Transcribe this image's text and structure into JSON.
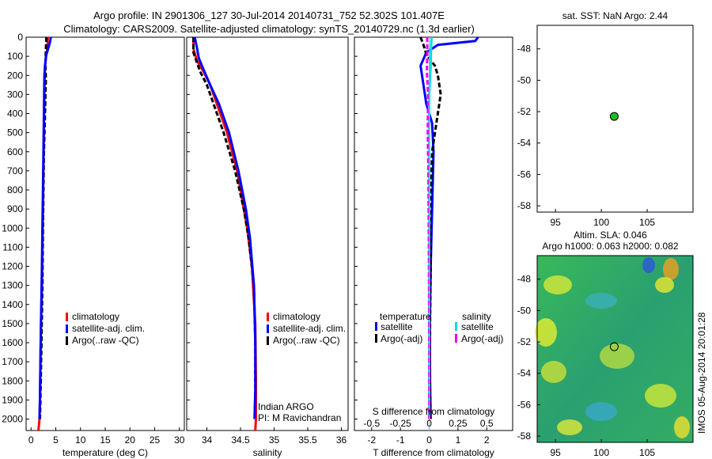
{
  "header": {
    "line1": "Argo profile: IN 2901306_127 30-Jul-2014 20140731_752 52.302S 101.407E",
    "line2": "Climatology: CARS2009. Satellite-adjusted climatology: synTS_20140729.nc (1.3d earlier)"
  },
  "colors": {
    "climatology": "#ff0000",
    "satellite": "#0000ff",
    "argo": "#000000",
    "salinity_satellite": "#00dddd",
    "salinity_argo": "#ee00ee",
    "float_marker": "#22bb22"
  },
  "chart_data": [
    {
      "id": "temperature",
      "type": "line",
      "xlabel": "temperature (deg C)",
      "xlim": [
        -1,
        31
      ],
      "ylim": [
        2060,
        0
      ],
      "xticks": [
        "0",
        "5",
        "10",
        "15",
        "20",
        "25",
        "30"
      ],
      "xtick_values": [
        0,
        5,
        10,
        15,
        20,
        25,
        30
      ],
      "yticks": [
        "0",
        "100",
        "200",
        "300",
        "400",
        "500",
        "600",
        "700",
        "800",
        "900",
        "1000",
        "1100",
        "1200",
        "1300",
        "1400",
        "1500",
        "1600",
        "1700",
        "1800",
        "1900",
        "2000"
      ],
      "ytick_values": [
        0,
        100,
        200,
        300,
        400,
        500,
        600,
        700,
        800,
        900,
        1000,
        1100,
        1200,
        1300,
        1400,
        1500,
        1600,
        1700,
        1800,
        1900,
        2000
      ],
      "legend": [
        "climatology",
        "satellite-adj. clim.",
        "Argo(..raw -QC)"
      ],
      "series": [
        {
          "name": "climatology",
          "color": "#ff0000",
          "x": [
            3.4,
            3.3,
            2.8,
            2.7,
            2.6,
            2.5,
            2.4,
            2.3,
            2.2,
            2.0,
            1.9,
            1.8,
            1.7,
            1.5
          ],
          "y": [
            0,
            50,
            150,
            300,
            500,
            700,
            900,
            1100,
            1300,
            1500,
            1700,
            1900,
            2000,
            2060
          ]
        },
        {
          "name": "Argo(..raw -QC)",
          "color": "#000000",
          "x": [
            3.1,
            3.0,
            2.9,
            3.0,
            2.9,
            2.8,
            2.6,
            2.5,
            2.4,
            2.3,
            2.1,
            1.9,
            1.8
          ],
          "y": [
            0,
            60,
            150,
            220,
            300,
            420,
            600,
            800,
            1000,
            1300,
            1600,
            1900,
            2000
          ]
        },
        {
          "name": "satellite-adj. clim.",
          "color": "#0000ff",
          "x": [
            4.0,
            3.8,
            3.0,
            2.7,
            2.6,
            2.5,
            2.4,
            2.3,
            2.2,
            2.0,
            1.9,
            1.8,
            1.7
          ],
          "y": [
            0,
            30,
            100,
            200,
            400,
            600,
            800,
            1000,
            1200,
            1500,
            1700,
            1900,
            2000
          ]
        }
      ]
    },
    {
      "id": "salinity",
      "type": "line",
      "xlabel": "salinity",
      "xlim": [
        33.7,
        36.1
      ],
      "ylim": [
        2060,
        0
      ],
      "xticks": [
        "34",
        "34.5",
        "35",
        "35.5",
        "36"
      ],
      "xtick_values": [
        34,
        34.5,
        35,
        35.5,
        36
      ],
      "legend": [
        "climatology",
        "satellite-adj. clim.",
        "Argo(..raw -QC)"
      ],
      "annotation": [
        "Indian ARGO",
        "PI: M Ravichandran"
      ],
      "series": [
        {
          "name": "climatology",
          "color": "#ff0000",
          "x": [
            33.8,
            33.8,
            33.85,
            33.95,
            34.05,
            34.15,
            34.3,
            34.45,
            34.55,
            34.6,
            34.67,
            34.72,
            34.73,
            34.73,
            34.72
          ],
          "y": [
            0,
            60,
            120,
            180,
            250,
            350,
            500,
            700,
            900,
            1000,
            1200,
            1500,
            1800,
            2000,
            2060
          ]
        },
        {
          "name": "Argo(..raw -QC)",
          "color": "#000000",
          "x": [
            33.8,
            33.8,
            33.85,
            33.9,
            34.0,
            34.1,
            34.25,
            34.42,
            34.55,
            34.62,
            34.7,
            34.72,
            34.72,
            34.71
          ],
          "y": [
            0,
            80,
            130,
            180,
            250,
            350,
            500,
            700,
            900,
            1050,
            1300,
            1600,
            1850,
            2000
          ]
        },
        {
          "name": "satellite-adj. clim.",
          "color": "#0000ff",
          "x": [
            33.82,
            33.85,
            33.88,
            33.95,
            34.05,
            34.18,
            34.33,
            34.47,
            34.58,
            34.64,
            34.7,
            34.72,
            34.72,
            34.71
          ],
          "y": [
            0,
            50,
            110,
            170,
            250,
            350,
            500,
            700,
            900,
            1050,
            1300,
            1600,
            1850,
            2000
          ]
        }
      ]
    },
    {
      "id": "difference",
      "type": "line",
      "xlabel": "T difference from climatology",
      "x2label": "S difference from climatology",
      "xlim": [
        -2.6,
        2.9
      ],
      "ylim": [
        2060,
        0
      ],
      "xticks": [
        "-2",
        "-1",
        "0",
        "1",
        "2"
      ],
      "xtick_values": [
        -2,
        -1,
        0,
        1,
        2
      ],
      "x2ticks": [
        "-0.5",
        "-0.25",
        "0",
        "0.25",
        "0.5"
      ],
      "x2tick_values": [
        -0.5,
        -0.25,
        0,
        0.25,
        0.5
      ],
      "legend_temperature": {
        "heading": "temperature",
        "items": [
          "satellite",
          "Argo(-adj)"
        ]
      },
      "legend_salinity": {
        "heading": "salinity",
        "items": [
          "satellite",
          "Argo(-adj)"
        ]
      },
      "series": [
        {
          "name": "temperature satellite",
          "color": "#0000ff",
          "x": [
            1.7,
            1.6,
            0.3,
            -0.1,
            -0.3,
            -0.2,
            -0.1,
            0.1,
            0.15,
            0.1,
            0.05,
            0.02,
            0.03,
            0.05
          ],
          "y": [
            0,
            20,
            40,
            80,
            150,
            250,
            350,
            450,
            600,
            900,
            1200,
            1500,
            1800,
            2000
          ]
        },
        {
          "name": "temperature Argo(-adj)",
          "color": "#000000",
          "x": [
            -0.3,
            -0.2,
            -0.1,
            0.2,
            0.3,
            0.4,
            0.25,
            0.1,
            0.05,
            0.05,
            0.03,
            0.02,
            0.04
          ],
          "y": [
            0,
            40,
            90,
            150,
            200,
            300,
            450,
            600,
            900,
            1200,
            1500,
            1800,
            2000
          ]
        },
        {
          "name": "salinity satellite",
          "color": "#00dddd",
          "x": [
            0.08,
            0.06,
            0.05,
            0.0,
            -0.01,
            0.0,
            0.0,
            0.0,
            0.0,
            0.0
          ],
          "y": [
            0,
            80,
            150,
            300,
            500,
            800,
            1100,
            1400,
            1700,
            2000
          ]
        },
        {
          "name": "salinity Argo(-adj)",
          "color": "#ee00ee",
          "x": [
            -0.07,
            -0.07,
            -0.08,
            -0.04,
            -0.05,
            -0.03,
            -0.02,
            -0.01,
            0.0,
            0.0
          ],
          "y": [
            0,
            100,
            180,
            300,
            500,
            700,
            900,
            1200,
            1600,
            2000
          ]
        }
      ]
    },
    {
      "id": "sst_map",
      "type": "scatter",
      "title": "sat. SST: NaN Argo: 2.44",
      "xlim": [
        93,
        110
      ],
      "ylim": [
        -58.4,
        -46.5
      ],
      "xticks": [
        "95",
        "100",
        "105"
      ],
      "xtick_values": [
        95,
        100,
        105
      ],
      "yticks": [
        "-48",
        "-50",
        "-52",
        "-54",
        "-56",
        "-58"
      ],
      "ytick_values": [
        -48,
        -50,
        -52,
        -54,
        -56,
        -58
      ],
      "points": [
        {
          "x": 101.407,
          "y": -52.302
        }
      ]
    },
    {
      "id": "sla_map",
      "type": "heatmap",
      "title_line1": "Altim. SLA: 0.046",
      "title_line2": "Argo h1000: 0.063 h2000: 0.082",
      "xlim": [
        93,
        110
      ],
      "ylim": [
        -58.4,
        -46.5
      ],
      "xticks": [
        "95",
        "100",
        "105"
      ],
      "xtick_values": [
        95,
        100,
        105
      ],
      "yticks": [
        "-48",
        "-50",
        "-52",
        "-54",
        "-56",
        "-58"
      ],
      "ytick_values": [
        -48,
        -50,
        -52,
        -54,
        -56,
        -58
      ],
      "points": [
        {
          "x": 101.407,
          "y": -52.302
        }
      ]
    }
  ],
  "watermark": "IMOS 05-Aug-2014 20:01:28"
}
